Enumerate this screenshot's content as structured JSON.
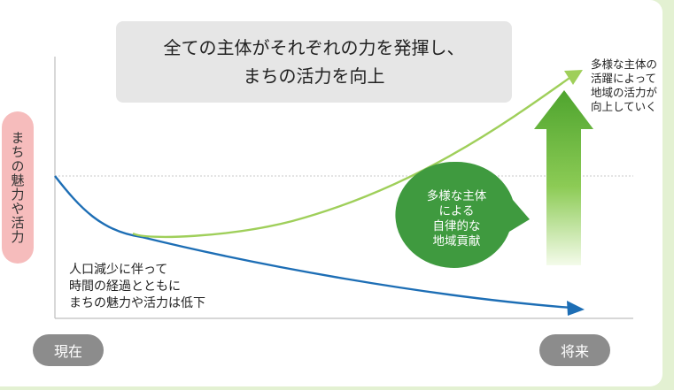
{
  "headline": {
    "line1": "全ての主体がそれぞれの力を発揮し、",
    "line2": "まちの活力を向上"
  },
  "y_axis_label": "まちの魅力や活力",
  "annotation_right": [
    "多様な主体の",
    "活躍によって",
    "地域の活力が",
    "向上していく"
  ],
  "annotation_bottom": [
    "人口減少に伴って",
    "時間の経過とともに",
    "まちの魅力や活力は低下"
  ],
  "circle_label": [
    "多様な主体",
    "による",
    "自律的な",
    "地域貢献"
  ],
  "x_start_label": "現在",
  "x_end_label": "将来",
  "colors": {
    "decline_curve": "#1d6eb5",
    "growth_curve": "#9fcf5a",
    "circle": "#3f9a3f",
    "arrow_top": "#4ea42e",
    "label_pill": "#8c8c8c",
    "y_label_bg": "#f6bcbc",
    "page_border": "#e3f1d2"
  }
}
